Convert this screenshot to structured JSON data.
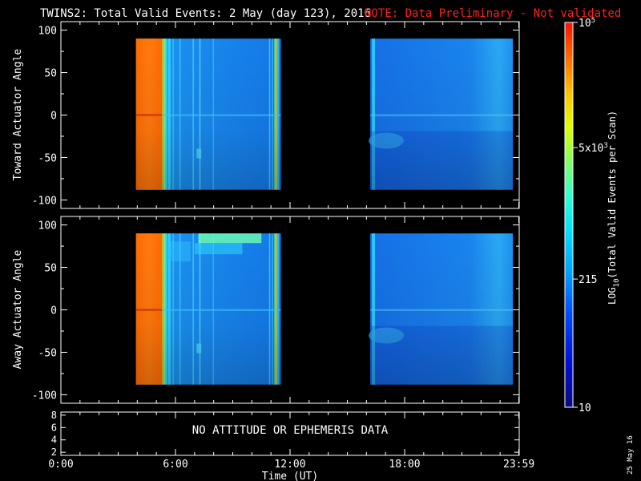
{
  "title": "TWINS2: Total Valid Events:  2 May (day 123), 2016",
  "note": "NOTE: Data Preliminary - Not validated",
  "datestamp": "25 May 16",
  "colors": {
    "background": "#000000",
    "note": "#ff2020",
    "axes": "#ffffff"
  },
  "chart_data": [
    {
      "type": "heatmap",
      "ylabel": "Toward Actuator Angle",
      "ylim": [
        -110,
        110
      ],
      "yticks": [
        "100",
        "50",
        "0",
        "-50",
        "-100"
      ],
      "xlim_hours": [
        0,
        24
      ],
      "coverage": [
        {
          "start": "03:56",
          "end": "11:31",
          "angle_range": [
            -88,
            90
          ]
        },
        {
          "start": "16:12",
          "end": "23:40",
          "angle_range": [
            -88,
            90
          ]
        }
      ]
    },
    {
      "type": "heatmap",
      "ylabel": "Away Actuator Angle",
      "ylim": [
        -110,
        110
      ],
      "yticks": [
        "100",
        "50",
        "0",
        "-50",
        "-100"
      ],
      "xlim_hours": [
        0,
        24
      ],
      "coverage": [
        {
          "start": "03:56",
          "end": "11:31",
          "angle_range": [
            -88,
            90
          ]
        },
        {
          "start": "16:12",
          "end": "23:40",
          "angle_range": [
            -88,
            90
          ]
        }
      ]
    },
    {
      "type": "line",
      "ylim": [
        1.5,
        8.5
      ],
      "yticks": [
        "8",
        "6",
        "4",
        "2"
      ],
      "annotation": "NO ATTITUDE OR EPHEMERIS DATA"
    }
  ],
  "xaxis": {
    "label": "Time (UT)",
    "ticks": [
      {
        "label": "0:00",
        "hour": 0
      },
      {
        "label": "6:00",
        "hour": 6
      },
      {
        "label": "12:00",
        "hour": 12
      },
      {
        "label": "18:00",
        "hour": 18
      },
      {
        "label": "23:59",
        "hour": 23.983
      }
    ]
  },
  "colorbar": {
    "label_parts": {
      "pre": "LOG",
      "sub": "10",
      "post": "(Total Valid Events per Scan)"
    },
    "scale": "log",
    "range": [
      10,
      100000
    ],
    "ticks": [
      {
        "label": "10",
        "value": 10
      },
      {
        "label": "215",
        "value": 215
      },
      {
        "label": "5x10",
        "sup": "3",
        "value": 5000
      },
      {
        "label": "10",
        "sup": "5",
        "value": 100000
      }
    ]
  }
}
